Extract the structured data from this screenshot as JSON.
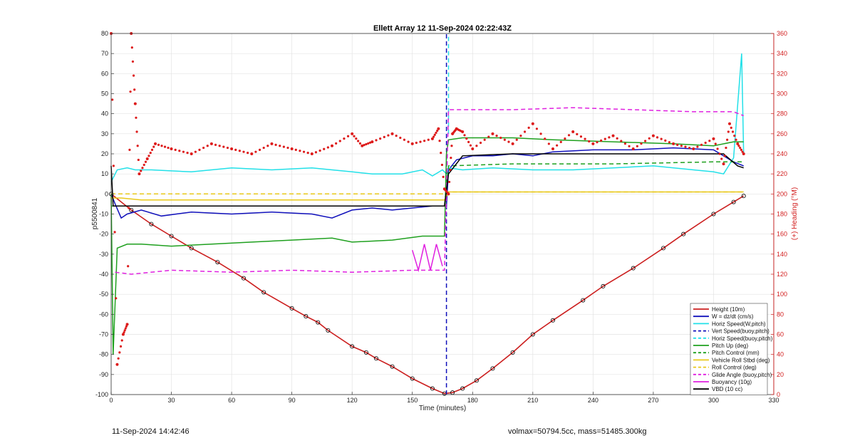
{
  "chart_data": {
    "type": "line",
    "title": "Ellett Array 12 11-Sep-2024 02:22:43Z",
    "xlabel": "Time (minutes)",
    "ylabel": "p5500841",
    "y2label": "(+) Heading (°M)",
    "xlim": [
      0,
      330
    ],
    "ylim": [
      -100,
      80
    ],
    "y2lim": [
      0,
      360
    ],
    "xticks": [
      0,
      30,
      60,
      90,
      120,
      150,
      180,
      210,
      240,
      270,
      300,
      330
    ],
    "yticks": [
      -100,
      -90,
      -80,
      -70,
      -60,
      -50,
      -40,
      -30,
      -20,
      -10,
      0,
      10,
      20,
      30,
      40,
      50,
      60,
      70,
      80
    ],
    "y2ticks": [
      0,
      20,
      40,
      60,
      80,
      100,
      120,
      140,
      160,
      180,
      200,
      220,
      240,
      260,
      280,
      300,
      320,
      340,
      360
    ],
    "grid": true,
    "legend_position": "bottom-right",
    "colors": {
      "height": "#cc1f1f",
      "w": "#1010bb",
      "horiz": "#22e0e8",
      "pitch": "#1fa01f",
      "roll": "#e8c81a",
      "glide": "#e020e0",
      "vbd": "#000000",
      "heading": "#dd1a1a"
    },
    "series": [
      {
        "name": "Height (10m)",
        "style": "solid",
        "color": "#cc1f1f",
        "x": [
          0,
          10,
          20,
          30,
          40,
          53,
          66,
          76,
          90,
          97,
          103,
          108,
          120,
          127,
          132,
          140,
          150,
          160,
          166,
          170,
          175,
          182,
          190,
          200,
          210,
          220,
          235,
          245,
          260,
          275,
          285,
          300,
          310,
          315
        ],
        "y": [
          0,
          -8,
          -15,
          -21,
          -27,
          -34,
          -42,
          -49,
          -57,
          -61,
          -64,
          -68,
          -76,
          -79,
          -82,
          -86,
          -92,
          -97,
          -99.5,
          -99,
          -97,
          -93,
          -87,
          -79,
          -70,
          -63,
          -53,
          -46,
          -37,
          -27,
          -20,
          -10,
          -4,
          -1
        ]
      },
      {
        "name": "W = dz/dt (cm/s)",
        "style": "solid",
        "color": "#1010bb",
        "x": [
          0,
          2,
          5,
          8,
          15,
          25,
          40,
          60,
          80,
          100,
          110,
          120,
          130,
          140,
          150,
          160,
          167,
          168,
          172,
          180,
          190,
          200,
          210,
          220,
          240,
          260,
          280,
          300,
          310,
          315
        ],
        "y": [
          0,
          -5,
          -12,
          -10,
          -8,
          -11,
          -9,
          -10,
          -9,
          -10,
          -12,
          -8,
          -7,
          -8,
          -7,
          -6,
          -6,
          12,
          17,
          19,
          19,
          20,
          19,
          21,
          22,
          22,
          23,
          22,
          16,
          14
        ]
      },
      {
        "name": "Horiz Speed(W,pitch)",
        "style": "solid",
        "color": "#22e0e8",
        "x": [
          0,
          3,
          8,
          12,
          20,
          40,
          60,
          80,
          100,
          110,
          120,
          130,
          145,
          155,
          160,
          165,
          167,
          168,
          175,
          190,
          210,
          230,
          250,
          270,
          290,
          300,
          305,
          310,
          314,
          315
        ],
        "y": [
          6,
          12,
          13,
          12,
          12,
          11,
          13,
          12,
          13,
          12,
          11,
          10,
          10,
          12,
          9,
          12,
          10,
          13,
          12,
          13,
          12,
          12,
          13,
          14,
          12,
          11,
          10,
          18,
          70,
          20
        ]
      },
      {
        "name": "Vert Speed(buoy,pitch)",
        "style": "dashed",
        "color": "#1010bb",
        "x": [
          167,
          167
        ],
        "y": [
          -100,
          80
        ]
      },
      {
        "name": "Horiz Speed(buoy,pitch)",
        "style": "dashed",
        "color": "#22e0e8",
        "x": [
          168,
          168
        ],
        "y": [
          30,
          80
        ]
      },
      {
        "name": "Pitch Up (deg)",
        "style": "solid",
        "color": "#1fa01f",
        "x": [
          0,
          1,
          3,
          8,
          15,
          30,
          50,
          70,
          90,
          110,
          120,
          140,
          155,
          166,
          167,
          168,
          175,
          200,
          220,
          250,
          280,
          300,
          310,
          315
        ],
        "y": [
          0,
          -80,
          -27,
          -25,
          -25,
          -26,
          -25,
          -24,
          -23,
          -22,
          -24,
          -23,
          -21,
          -21,
          20,
          27,
          28,
          28,
          27,
          26,
          25,
          24,
          26,
          26
        ]
      },
      {
        "name": "Pitch Control (mm)",
        "style": "dashed",
        "color": "#1fa01f",
        "x": [
          0,
          50,
          100,
          166,
          168,
          200,
          250,
          300,
          315
        ],
        "y": [
          -6,
          -6,
          -6,
          -6,
          14,
          15,
          15,
          16,
          16
        ]
      },
      {
        "name": "Vehicle Roll Stbd (deg)",
        "style": "solid",
        "color": "#e8c81a",
        "x": [
          0,
          5,
          15,
          40,
          80,
          120,
          166,
          168,
          200,
          250,
          300,
          315
        ],
        "y": [
          -2,
          -2,
          -3,
          -3,
          -3,
          -3,
          -3,
          1,
          1,
          1,
          1,
          1
        ]
      },
      {
        "name": "Roll Control (deg)",
        "style": "dashed",
        "color": "#e8c81a",
        "x": [
          0,
          5,
          15,
          40,
          80,
          120,
          166,
          168,
          200,
          250,
          300,
          315
        ],
        "y": [
          0,
          0,
          0,
          0,
          0,
          0,
          0,
          1,
          1,
          1,
          1,
          1
        ]
      },
      {
        "name": "Glide Angle (buoy,pitch)",
        "style": "dashed",
        "color": "#e020e0",
        "x": [
          2,
          10,
          30,
          60,
          90,
          120,
          150,
          166,
          168,
          200,
          230,
          260,
          290,
          310,
          315
        ],
        "y": [
          -39,
          -40,
          -38,
          -39,
          -38,
          -39,
          -38,
          -38,
          42,
          42,
          43,
          42,
          41,
          41,
          39
        ]
      },
      {
        "name": "Buoyancy (10g)",
        "style": "solid",
        "color": "#e020e0",
        "x": [
          150,
          153,
          156,
          159,
          162,
          165
        ],
        "y": [
          -28,
          -38,
          -25,
          -38,
          -25,
          -36
        ]
      },
      {
        "name": "VBD (10 cc)",
        "style": "solid",
        "color": "#000000",
        "x": [
          0,
          1,
          5,
          30,
          80,
          120,
          160,
          166,
          168,
          175,
          200,
          230,
          260,
          290,
          305,
          312,
          315
        ],
        "y": [
          14,
          -6,
          -6,
          -6,
          -6,
          -6,
          -6,
          -6,
          10,
          19,
          20,
          20,
          20,
          20,
          20,
          14,
          13
        ]
      },
      {
        "name": "Heading (°M)",
        "axis": "right",
        "style": "dotted",
        "color": "#dd1a1a",
        "x": [
          0,
          3,
          6,
          8,
          10,
          12,
          14,
          18,
          22,
          30,
          40,
          50,
          60,
          70,
          80,
          90,
          100,
          110,
          120,
          125,
          130,
          140,
          150,
          160,
          163,
          166,
          168,
          170,
          172,
          175,
          180,
          190,
          200,
          210,
          220,
          230,
          240,
          250,
          260,
          270,
          280,
          290,
          300,
          305,
          308,
          312,
          315
        ],
        "y": [
          360,
          30,
          60,
          70,
          360,
          290,
          220,
          235,
          250,
          245,
          240,
          250,
          245,
          240,
          250,
          245,
          240,
          248,
          260,
          248,
          252,
          260,
          250,
          255,
          265,
          205,
          200,
          260,
          265,
          262,
          245,
          260,
          250,
          270,
          245,
          262,
          250,
          258,
          245,
          258,
          250,
          245,
          255,
          230,
          270,
          250,
          240
        ]
      }
    ],
    "legend": [
      {
        "label": "Height (10m)",
        "color": "#cc1f1f",
        "dash": "solid"
      },
      {
        "label": "W = dz/dt (cm/s)",
        "color": "#1010bb",
        "dash": "solid"
      },
      {
        "label": "Horiz Speed(W,pitch)",
        "color": "#22e0e8",
        "dash": "solid"
      },
      {
        "label": "Vert Speed(buoy,pitch)",
        "color": "#1010bb",
        "dash": "dashed"
      },
      {
        "label": "Horiz Speed(buoy,pitch)",
        "color": "#22e0e8",
        "dash": "dashed"
      },
      {
        "label": "Pitch Up (deg)",
        "color": "#1fa01f",
        "dash": "solid"
      },
      {
        "label": "Pitch Control (mm)",
        "color": "#1fa01f",
        "dash": "dashed"
      },
      {
        "label": "Vehicle Roll Stbd (deg)",
        "color": "#e8c81a",
        "dash": "solid"
      },
      {
        "label": "Roll Control (deg)",
        "color": "#e8c81a",
        "dash": "dashed"
      },
      {
        "label": "Glide Angle (buoy,pitch)",
        "color": "#e020e0",
        "dash": "dashed"
      },
      {
        "label": "Buoyancy (10g)",
        "color": "#e020e0",
        "dash": "solid"
      },
      {
        "label": "VBD (10 cc)",
        "color": "#000000",
        "dash": "solid"
      }
    ]
  },
  "footer": {
    "timestamp": "11-Sep-2024 14:42:46",
    "stats": "volmax=50794.5cc, mass=51485.300kg"
  }
}
